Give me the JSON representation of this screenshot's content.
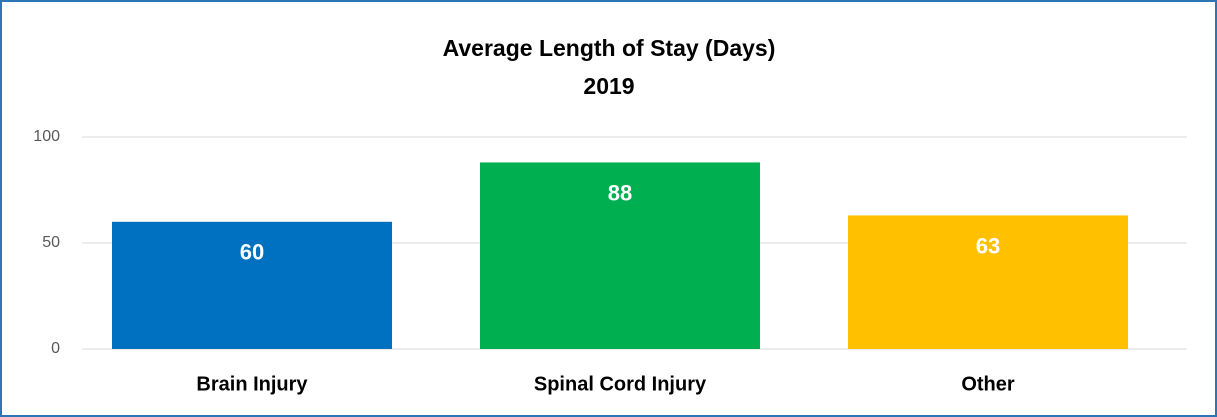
{
  "chart_data": {
    "type": "bar",
    "title": "Average Length of Stay (Days)",
    "subtitle": "2019",
    "categories": [
      "Brain Injury",
      "Spinal Cord Injury",
      "Other"
    ],
    "values": [
      60,
      88,
      63
    ],
    "colors": [
      "#0070c0",
      "#00b050",
      "#ffc000"
    ],
    "ylim": [
      0,
      100
    ],
    "yticks": [
      0,
      50,
      100
    ],
    "grid": true
  }
}
